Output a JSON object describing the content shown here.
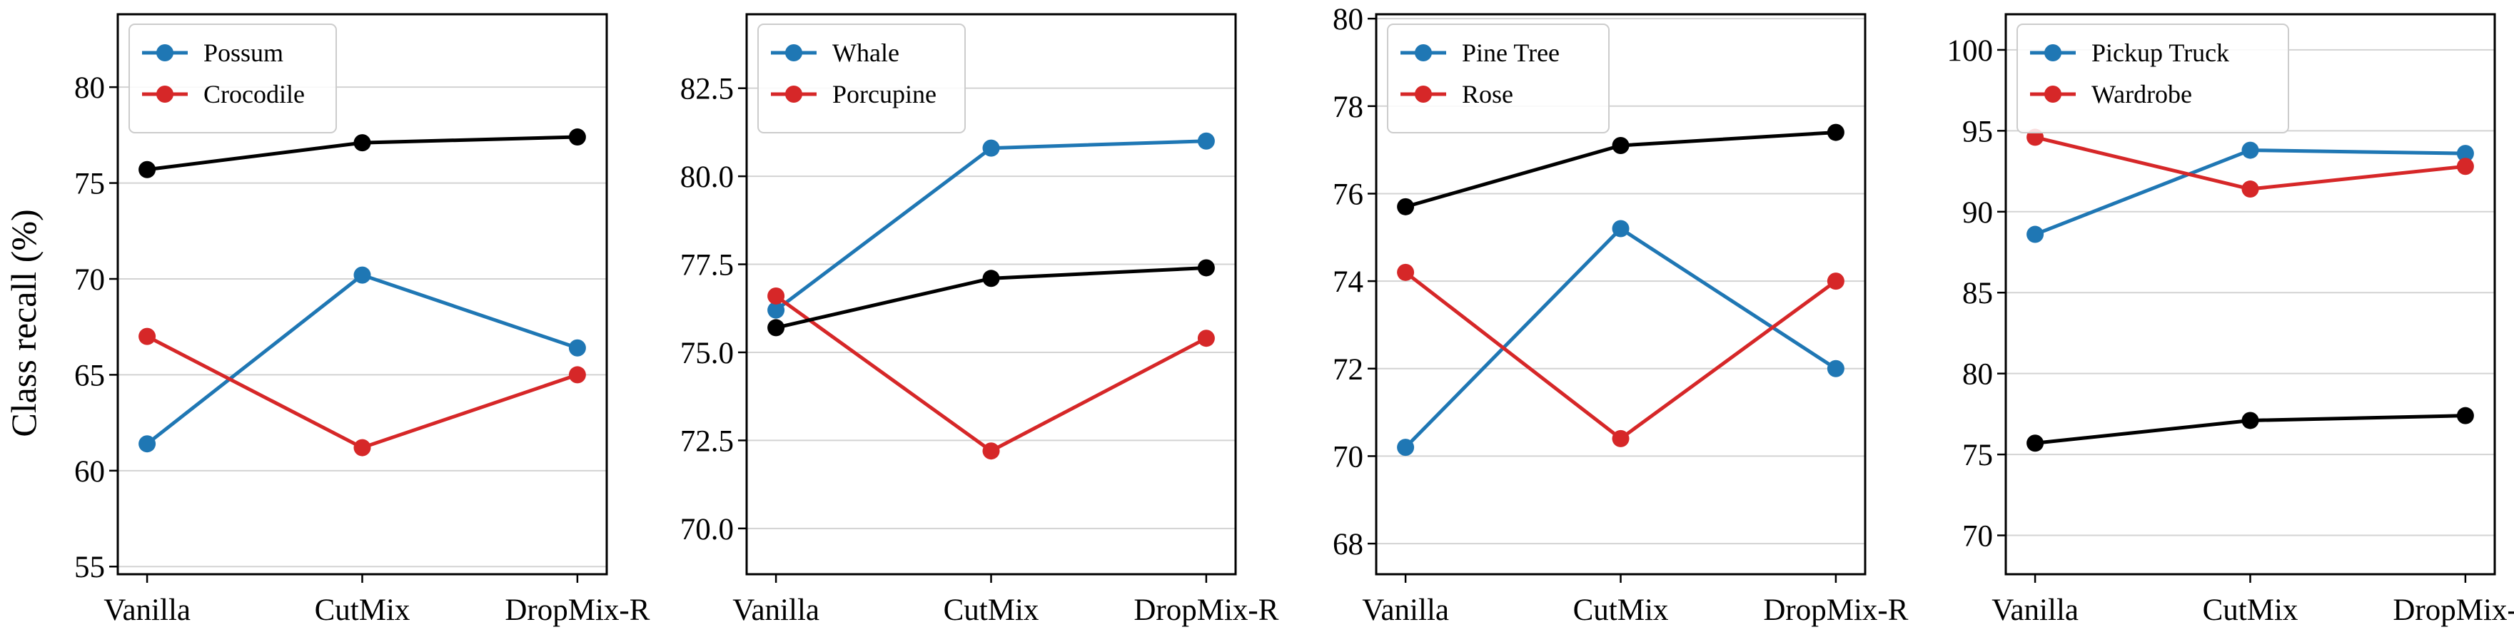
{
  "figure": {
    "ylabel": "Class recall (%)"
  },
  "colors": {
    "class_a": "#1f77b4",
    "class_b": "#d62728",
    "average": "#000000",
    "grid": "#d3d3d3"
  },
  "chart_data": [
    {
      "type": "line",
      "categories": [
        "Vanilla",
        "CutMix",
        "DropMix-R"
      ],
      "ylim": [
        54.6,
        83.8
      ],
      "yticks": [
        55,
        60,
        65,
        70,
        75,
        80
      ],
      "ytick_labels": [
        "55",
        "60",
        "65",
        "70",
        "75",
        "80"
      ],
      "grid": "horizontal",
      "legend_position": "top-left",
      "series": [
        {
          "name": "Possum",
          "color": "#1f77b4",
          "values": [
            61.4,
            70.2,
            66.4
          ]
        },
        {
          "name": "Crocodile",
          "color": "#d62728",
          "values": [
            67.0,
            61.2,
            65.0
          ]
        },
        {
          "color": "#000000",
          "values": [
            75.7,
            77.1,
            77.4
          ]
        }
      ]
    },
    {
      "type": "line",
      "categories": [
        "Vanilla",
        "CutMix",
        "DropMix-R"
      ],
      "ylim": [
        68.7,
        84.6
      ],
      "yticks": [
        70.0,
        72.5,
        75.0,
        77.5,
        80.0,
        82.5
      ],
      "ytick_labels": [
        "70.0",
        "72.5",
        "75.0",
        "77.5",
        "80.0",
        "82.5"
      ],
      "grid": "horizontal",
      "legend_position": "top-left",
      "series": [
        {
          "name": "Whale",
          "color": "#1f77b4",
          "values": [
            76.2,
            80.8,
            81.0
          ]
        },
        {
          "name": "Porcupine",
          "color": "#d62728",
          "values": [
            76.6,
            72.2,
            75.4
          ]
        },
        {
          "color": "#000000",
          "values": [
            75.7,
            77.1,
            77.4
          ]
        }
      ]
    },
    {
      "type": "line",
      "categories": [
        "Vanilla",
        "CutMix",
        "DropMix-R"
      ],
      "ylim": [
        67.3,
        80.1
      ],
      "yticks": [
        68,
        70,
        72,
        74,
        76,
        78,
        80
      ],
      "ytick_labels": [
        "68",
        "70",
        "72",
        "74",
        "76",
        "78",
        "80"
      ],
      "grid": "horizontal",
      "legend_position": "top-left",
      "series": [
        {
          "name": "Pine Tree",
          "color": "#1f77b4",
          "values": [
            70.2,
            75.2,
            72.0
          ]
        },
        {
          "name": "Rose",
          "color": "#d62728",
          "values": [
            74.2,
            70.4,
            74.0
          ]
        },
        {
          "color": "#000000",
          "values": [
            75.7,
            77.1,
            77.4
          ]
        }
      ]
    },
    {
      "type": "line",
      "categories": [
        "Vanilla",
        "CutMix",
        "DropMix-R"
      ],
      "ylim": [
        67.6,
        102.2
      ],
      "yticks": [
        70,
        75,
        80,
        85,
        90,
        95,
        100
      ],
      "ytick_labels": [
        "70",
        "75",
        "80",
        "85",
        "90",
        "95",
        "100"
      ],
      "grid": "horizontal",
      "legend_position": "top-left",
      "series": [
        {
          "name": "Pickup Truck",
          "color": "#1f77b4",
          "values": [
            88.6,
            93.8,
            93.6
          ]
        },
        {
          "name": "Wardrobe",
          "color": "#d62728",
          "values": [
            94.6,
            91.4,
            92.8
          ]
        },
        {
          "color": "#000000",
          "values": [
            75.7,
            77.1,
            77.4
          ]
        }
      ]
    }
  ]
}
